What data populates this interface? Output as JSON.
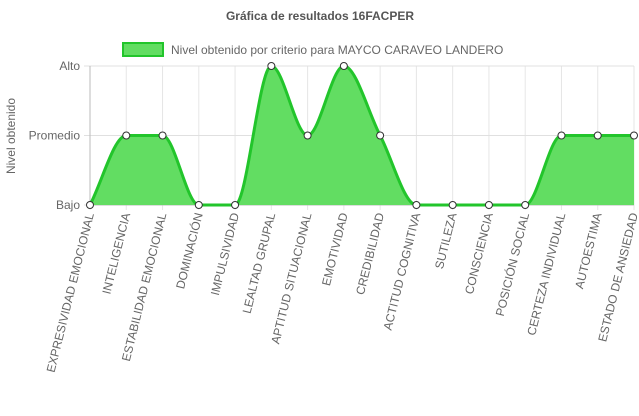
{
  "chart_data": {
    "type": "area",
    "title": "Gráfica de resultados 16FACPER",
    "xlabel": "",
    "ylabel": "Nivel obtenido",
    "y_levels": [
      "Bajo",
      "Promedio",
      "Alto"
    ],
    "ylim": [
      0,
      2
    ],
    "grid": true,
    "legend_position": "top",
    "categories": [
      "EXPRESIVIDAD EMOCIONAL",
      "INTELIGENCIA",
      "ESTABILIDAD EMOCIONAL",
      "DOMINACIÓN",
      "IMPULSIVIDAD",
      "LEALTAD GRUPAL",
      "APTITUD SITUACIONAL",
      "EMOTIVIDAD",
      "CREDIBILIDAD",
      "ACTITUD COGNITIVA",
      "SUTILEZA",
      "CONSCIENCIA",
      "POSICIÓN SOCIAL",
      "CERTEZA INDIVIDUAL",
      "AUTOESTIMA",
      "ESTADO DE ANSIEDAD"
    ],
    "series": [
      {
        "name": "Nivel obtenido por criterio para MAYCO CARAVEO LANDERO",
        "values": [
          0,
          1,
          1,
          0,
          0,
          2,
          1,
          2,
          1,
          0,
          0,
          0,
          0,
          1,
          1,
          1
        ],
        "line_color": "#22c52b",
        "fill_color": "#62dd62"
      }
    ]
  }
}
